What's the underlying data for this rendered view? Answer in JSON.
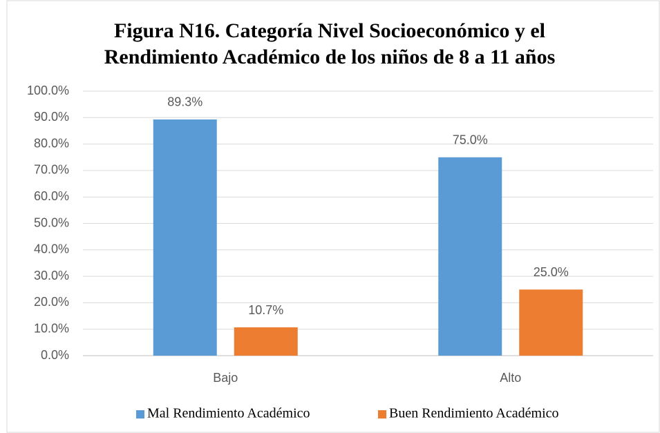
{
  "chart_data": {
    "type": "bar",
    "title": [
      "Figura N16. Categoría Nivel Socioeconómico y el",
      "Rendimiento Académico de los niños de 8 a 11 años"
    ],
    "categories": [
      "Bajo",
      "Alto"
    ],
    "series": [
      {
        "name": "Mal Rendimiento Académico",
        "color": "#5b9bd5",
        "values": [
          89.3,
          75.0
        ],
        "value_labels": [
          "89.3%",
          "75.0%"
        ]
      },
      {
        "name": "Buen Rendimiento Académico",
        "color": "#ed7d31",
        "values": [
          10.7,
          25.0
        ],
        "value_labels": [
          "10.7%",
          "25.0%"
        ]
      }
    ],
    "ylim": [
      0,
      100
    ],
    "yticks": [
      {
        "value": 0,
        "label": "0.0%"
      },
      {
        "value": 10,
        "label": "10.0%"
      },
      {
        "value": 20,
        "label": "20.0%"
      },
      {
        "value": 30,
        "label": "30.0%"
      },
      {
        "value": 40,
        "label": "40.0%"
      },
      {
        "value": 50,
        "label": "50.0%"
      },
      {
        "value": 60,
        "label": "60.0%"
      },
      {
        "value": 70,
        "label": "70.0%"
      },
      {
        "value": 80,
        "label": "80.0%"
      },
      {
        "value": 90,
        "label": "90.0%"
      },
      {
        "value": 100,
        "label": "100.0%"
      }
    ],
    "grid": true,
    "legend": "bottom"
  }
}
